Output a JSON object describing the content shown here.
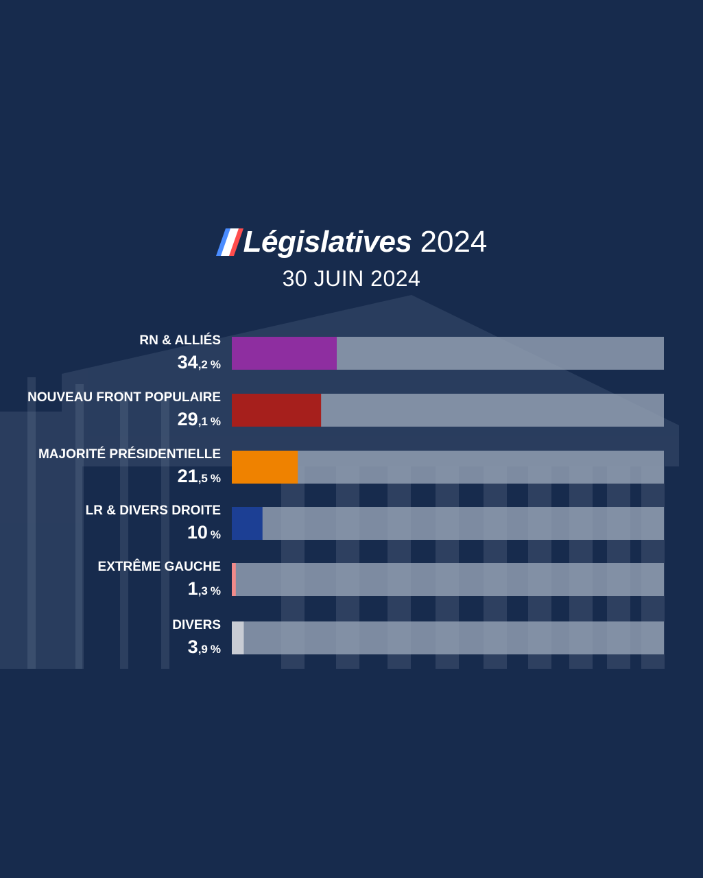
{
  "header": {
    "title_main": "Législatives",
    "title_year": "2024",
    "subtitle": "30 JUIN 2024"
  },
  "colors": {
    "background": "#172b4d",
    "track": "#9aa6b8",
    "logo_blue": "#4a8cff",
    "logo_red": "#ff4d4d"
  },
  "chart_data": {
    "type": "bar",
    "orientation": "horizontal",
    "title": "Législatives 2024",
    "subtitle": "30 JUIN 2024",
    "xlim": [
      0,
      100
    ],
    "grid": false,
    "legend": "none",
    "categories": [
      "RN & ALLIÉS",
      "NOUVEAU FRONT POPULAIRE",
      "MAJORITÉ PRÉSIDENTIELLE",
      "LR & DIVERS DROITE",
      "EXTRÊME GAUCHE",
      "DIVERS"
    ],
    "values": [
      34.2,
      29.1,
      21.5,
      10,
      1.3,
      3.9
    ],
    "value_labels": [
      {
        "int": "34",
        "dec": ",2",
        "unit": "%"
      },
      {
        "int": "29",
        "dec": ",1",
        "unit": "%"
      },
      {
        "int": "21",
        "dec": ",5",
        "unit": "%"
      },
      {
        "int": "10",
        "dec": "",
        "unit": "%"
      },
      {
        "int": "1",
        "dec": ",3",
        "unit": "%"
      },
      {
        "int": "3",
        "dec": ",9",
        "unit": "%"
      }
    ],
    "bar_colors": [
      "#8e2ea0",
      "#a61f1c",
      "#ef8200",
      "#1c3f94",
      "#f08a8a",
      "#c8ccd4"
    ]
  }
}
